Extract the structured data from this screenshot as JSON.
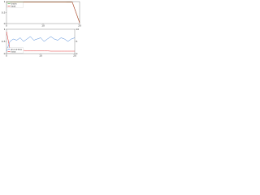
{
  "chart_data": [
    {
      "type": "line",
      "x": [
        0,
        2,
        4,
        6,
        8,
        10,
        12,
        14,
        16,
        18,
        20
      ],
      "xlim": [
        0,
        20
      ],
      "xticks": [
        0,
        10,
        20
      ],
      "ylim": [
        0,
        1
      ],
      "yticks": [
        0,
        0.5,
        1
      ],
      "legend": "upper left",
      "series": [
        {
          "name": "train",
          "color": "#2ca02c",
          "values": [
            0.98,
            0.99,
            0.99,
            0.99,
            0.99,
            0.99,
            0.99,
            0.99,
            0.99,
            0.98,
            0.05
          ]
        },
        {
          "name": "test",
          "color": "#d62728",
          "values": [
            0.97,
            0.98,
            0.98,
            0.98,
            0.98,
            0.98,
            0.98,
            0.98,
            0.98,
            0.97,
            0.03
          ]
        }
      ]
    },
    {
      "type": "line",
      "x": [
        0,
        1,
        2,
        3,
        4,
        5,
        6,
        7,
        8,
        9,
        10,
        11,
        12,
        13,
        14,
        15,
        16,
        17,
        18,
        19,
        20
      ],
      "xlim": [
        0,
        20
      ],
      "xticks": [
        0,
        10,
        20
      ],
      "ylim": [
        0,
        1
      ],
      "yticks": [
        0,
        0.5,
        1
      ],
      "y2lim": [
        0,
        10
      ],
      "y2ticks": [
        0,
        5,
        10
      ],
      "legend": "lower left",
      "series": [
        {
          "name": "accuracy",
          "color": "#4a86d8",
          "values": [
            0.1,
            0.5,
            0.6,
            0.55,
            0.65,
            0.5,
            0.6,
            0.7,
            0.55,
            0.6,
            0.65,
            0.5,
            0.6,
            0.7,
            0.6,
            0.55,
            0.65,
            0.6,
            0.5,
            0.6,
            0.65
          ]
        },
        {
          "name": "loss",
          "color": "#e03030",
          "axis": "y2",
          "values": [
            9,
            2,
            1.5,
            1.4,
            1.3,
            1.3,
            1.2,
            1.2,
            1.2,
            1.1,
            1.1,
            1.1,
            1.1,
            1.0,
            1.0,
            1.0,
            1.0,
            1.0,
            1.0,
            1.0,
            1.0
          ]
        }
      ]
    }
  ]
}
